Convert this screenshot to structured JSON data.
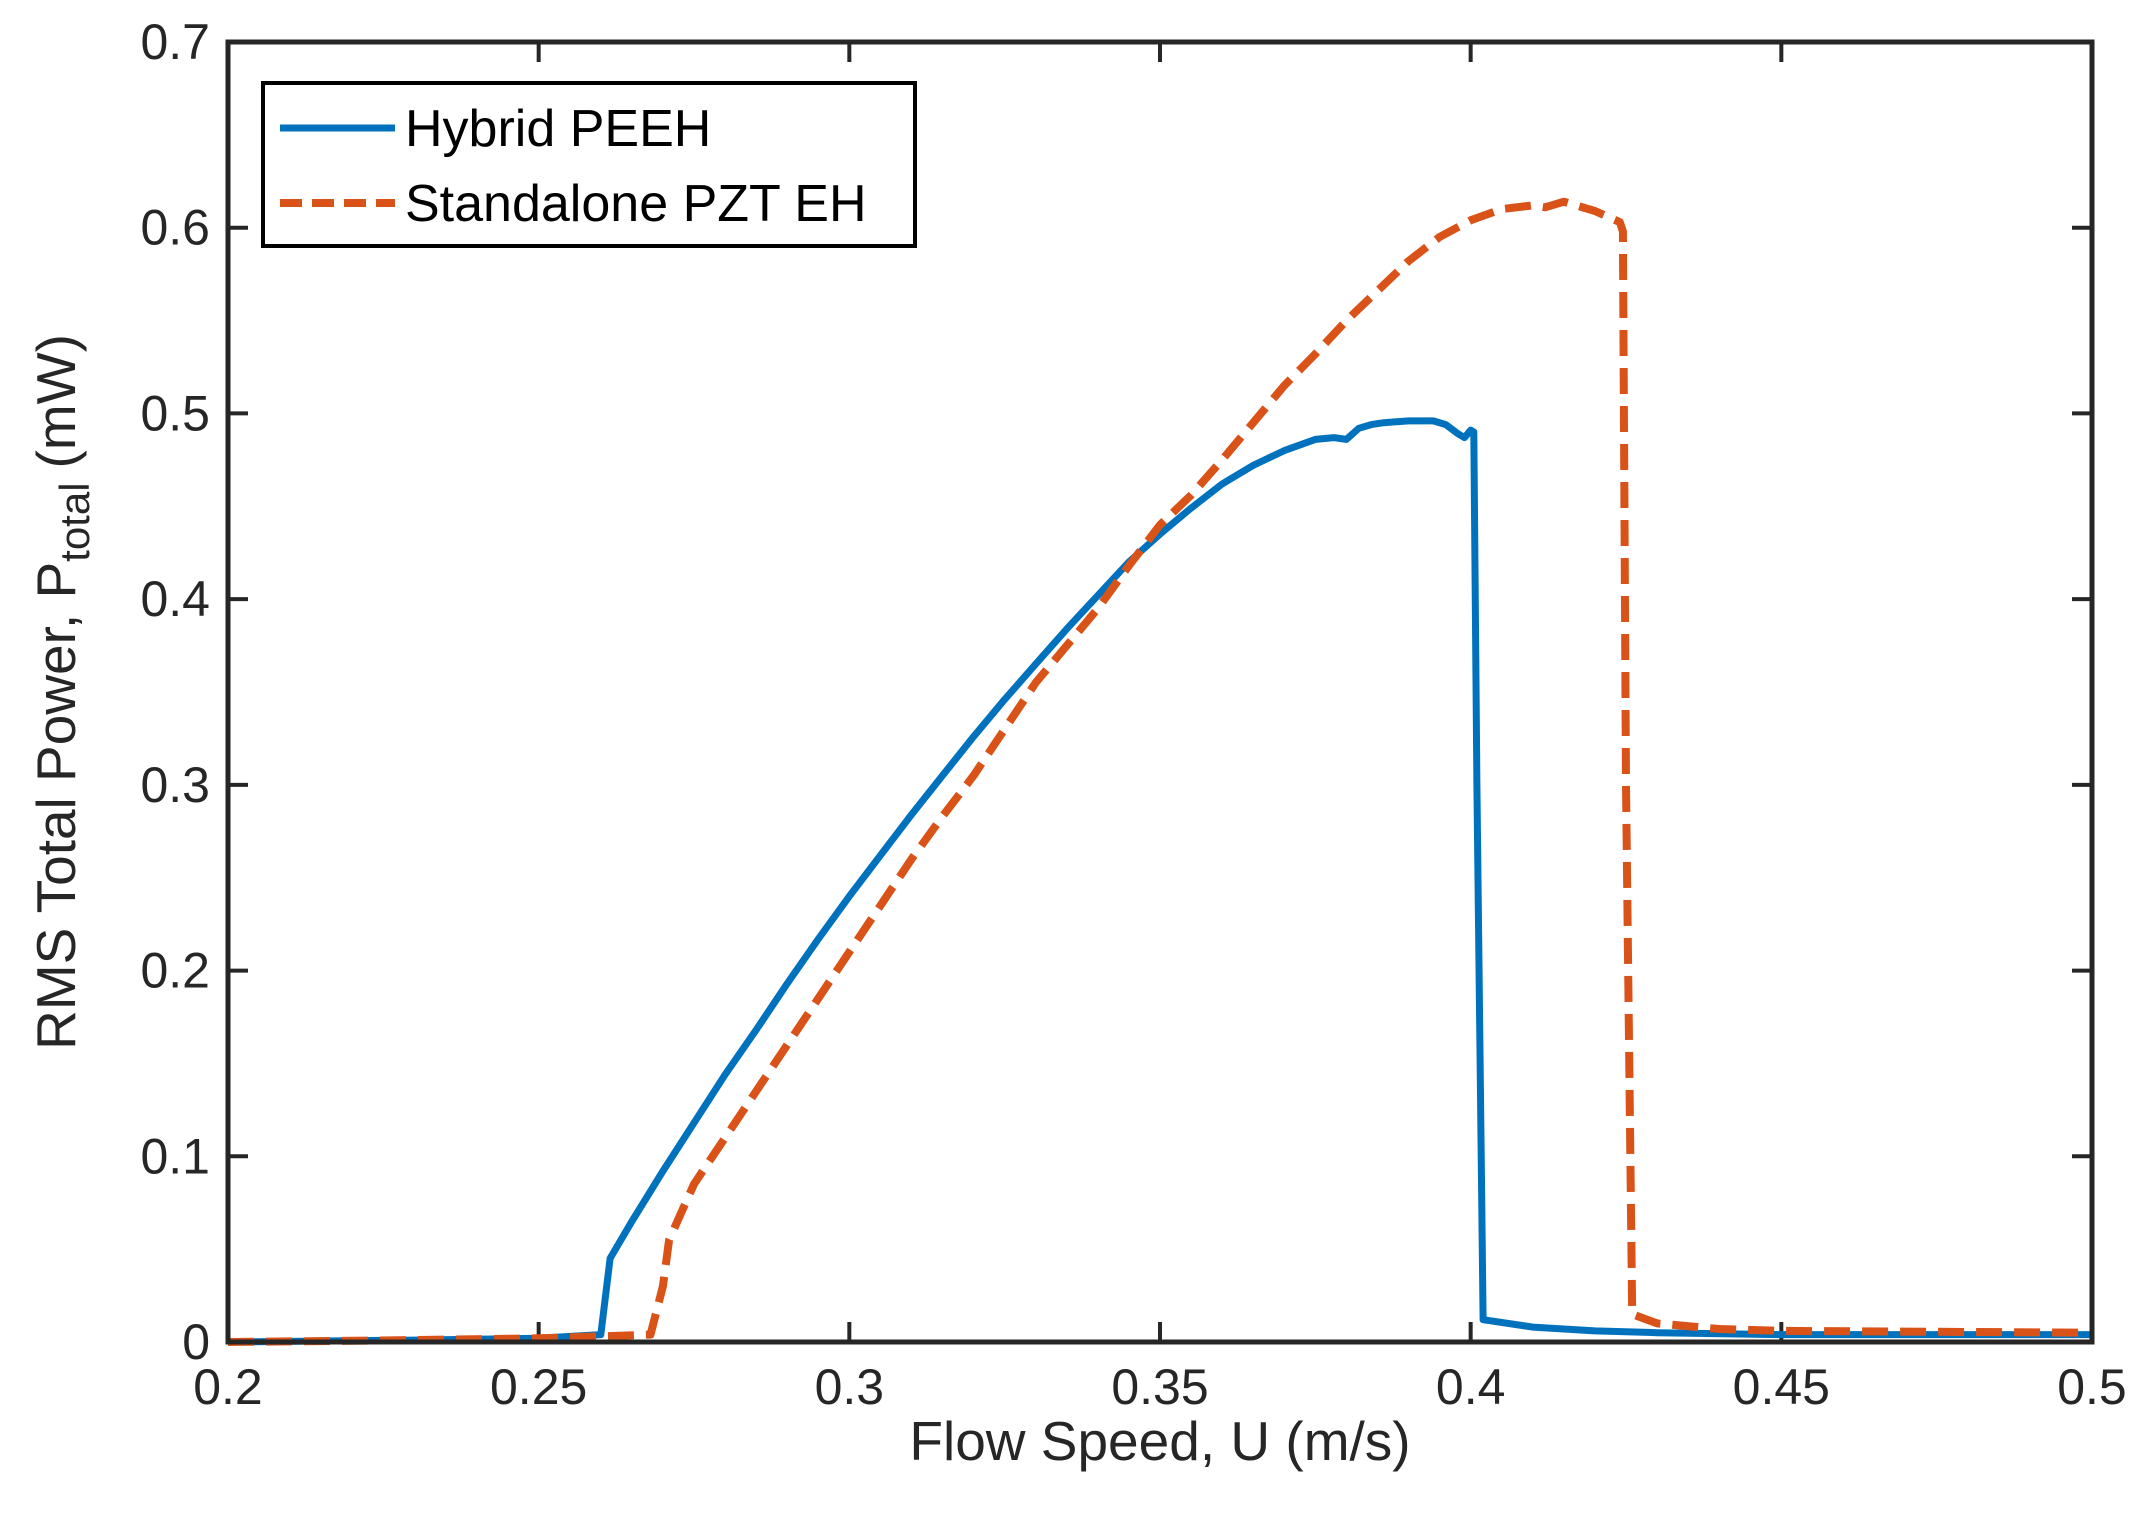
{
  "chart_data": {
    "type": "line",
    "title": "",
    "xlabel": "Flow Speed, U (m/s)",
    "ylabel": "RMS Total Power, P",
    "ylabel_subscript": "total",
    "ylabel_units": "(mW)",
    "xlim": [
      0.2,
      0.5
    ],
    "ylim": [
      0,
      0.7
    ],
    "xticks": [
      0.2,
      0.25,
      0.3,
      0.35,
      0.4,
      0.45,
      0.5
    ],
    "xtick_labels": [
      "0.2",
      "0.25",
      "0.3",
      "0.35",
      "0.4",
      "0.45",
      "0.5"
    ],
    "yticks": [
      0,
      0.1,
      0.2,
      0.3,
      0.4,
      0.5,
      0.6,
      0.7
    ],
    "ytick_labels": [
      "0",
      "0.1",
      "0.2",
      "0.3",
      "0.4",
      "0.5",
      "0.6",
      "0.7"
    ],
    "grid": false,
    "legend_position": "top-left",
    "series": [
      {
        "name": "Hybrid PEEH",
        "color": "#0072BD",
        "style": "solid",
        "x": [
          0.2,
          0.23,
          0.25,
          0.26,
          0.2615,
          0.265,
          0.27,
          0.275,
          0.28,
          0.285,
          0.29,
          0.295,
          0.3,
          0.305,
          0.31,
          0.315,
          0.32,
          0.325,
          0.33,
          0.335,
          0.34,
          0.345,
          0.35,
          0.355,
          0.36,
          0.365,
          0.37,
          0.375,
          0.378,
          0.38,
          0.382,
          0.384,
          0.386,
          0.39,
          0.394,
          0.396,
          0.398,
          0.399,
          0.4,
          0.4005,
          0.401,
          0.402,
          0.41,
          0.42,
          0.43,
          0.45,
          0.47,
          0.5
        ],
        "y": [
          0,
          0.001,
          0.002,
          0.004,
          0.045,
          0.065,
          0.092,
          0.118,
          0.144,
          0.168,
          0.193,
          0.217,
          0.24,
          0.262,
          0.284,
          0.305,
          0.326,
          0.346,
          0.365,
          0.384,
          0.402,
          0.42,
          0.435,
          0.449,
          0.462,
          0.472,
          0.48,
          0.486,
          0.487,
          0.486,
          0.492,
          0.494,
          0.495,
          0.496,
          0.496,
          0.494,
          0.489,
          0.487,
          0.491,
          0.49,
          0.3,
          0.012,
          0.008,
          0.006,
          0.005,
          0.004,
          0.004,
          0.004
        ]
      },
      {
        "name": "Standalone PZT EH",
        "color": "#D95319",
        "style": "dashed",
        "x": [
          0.2,
          0.23,
          0.25,
          0.26,
          0.268,
          0.27,
          0.271,
          0.275,
          0.28,
          0.285,
          0.29,
          0.295,
          0.3,
          0.305,
          0.31,
          0.315,
          0.32,
          0.325,
          0.33,
          0.335,
          0.34,
          0.345,
          0.35,
          0.355,
          0.36,
          0.365,
          0.37,
          0.375,
          0.38,
          0.385,
          0.39,
          0.395,
          0.4,
          0.405,
          0.41,
          0.412,
          0.415,
          0.418,
          0.42,
          0.424,
          0.4245,
          0.425,
          0.426,
          0.43,
          0.44,
          0.45,
          0.5
        ],
        "y": [
          0,
          0.001,
          0.002,
          0.003,
          0.004,
          0.03,
          0.055,
          0.085,
          0.11,
          0.135,
          0.16,
          0.185,
          0.21,
          0.235,
          0.26,
          0.283,
          0.305,
          0.33,
          0.355,
          0.375,
          0.395,
          0.418,
          0.44,
          0.456,
          0.475,
          0.495,
          0.515,
          0.532,
          0.55,
          0.566,
          0.582,
          0.595,
          0.604,
          0.61,
          0.612,
          0.611,
          0.614,
          0.611,
          0.609,
          0.603,
          0.598,
          0.3,
          0.015,
          0.01,
          0.007,
          0.006,
          0.005
        ]
      }
    ]
  }
}
